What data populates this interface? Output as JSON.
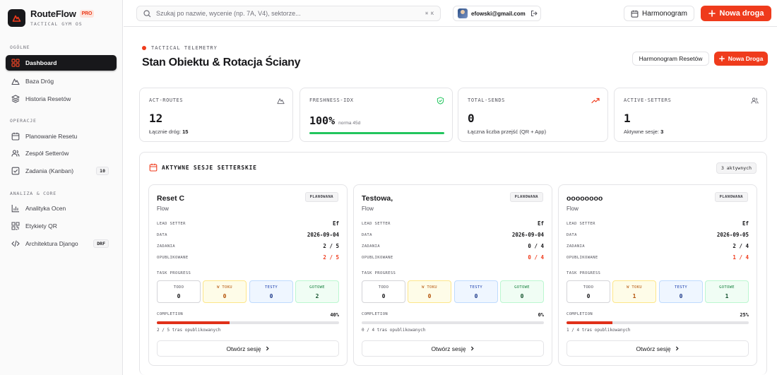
{
  "brand": {
    "name": "RouteFlow",
    "badge": "PRO",
    "subtitle": "TACTICAL GYM OS"
  },
  "sidebar": {
    "sections": [
      {
        "title": "OGÓLNE",
        "items": [
          {
            "label": "Dashboard",
            "icon": "dashboard-grid-icon",
            "active": true
          },
          {
            "label": "Baza Dróg",
            "icon": "mountain-icon"
          },
          {
            "label": "Historia Resetów",
            "icon": "layers-icon"
          }
        ]
      },
      {
        "title": "OPERACJE",
        "items": [
          {
            "label": "Planowanie Resetu",
            "icon": "calendar-icon"
          },
          {
            "label": "Zespół Setterów",
            "icon": "users-icon"
          },
          {
            "label": "Zadania (Kanban)",
            "icon": "checkbox-icon",
            "badge": "10"
          }
        ]
      },
      {
        "title": "ANALIZA & CORE",
        "items": [
          {
            "label": "Analityka Ocen",
            "icon": "bar-chart-icon"
          },
          {
            "label": "Etykiety QR",
            "icon": "qr-icon"
          },
          {
            "label": "Architektura Django",
            "icon": "code-icon",
            "badge": "DRF"
          }
        ]
      }
    ]
  },
  "topbar": {
    "search_placeholder": "Szukaj po nazwie, wycenie (np. 7A, V4), sektorze...",
    "shortcut": "⌘ K",
    "user_email": "efowski@gmail.com",
    "schedule_label": "Harmonogram",
    "new_route_label": "Nowa droga"
  },
  "header": {
    "eyebrow": "TACTICAL TELEMETRY",
    "title": "Stan Obiektu & Rotacja Ściany",
    "reset_schedule_label": "Harmonogram Resetów",
    "new_route_label": "Nowa Droga"
  },
  "stats": [
    {
      "label": "ACT-ROUTES",
      "value": "12",
      "sub_prefix": "Łącznie dróg:",
      "sub_value": "15",
      "icon": "mountain-icon"
    },
    {
      "label": "FRESHNESS-IDX",
      "value": "100%",
      "note": "norma 45d",
      "fill": 1.0,
      "icon": "shield-check-icon"
    },
    {
      "label": "TOTAL-SENDS",
      "value": "0",
      "sub_prefix": "Łączna liczba przejść (QR + App)",
      "sub_value": "",
      "icon": "trending-up-icon"
    },
    {
      "label": "ACTIVE-SETTERS",
      "value": "1",
      "sub_prefix": "Aktywne sesje:",
      "sub_value": "3",
      "icon": "users-icon"
    }
  ],
  "sessions": {
    "title": "AKTYWNE SESJE SETTERSKIE",
    "count_badge": "3 aktywnych",
    "labels": {
      "lead": "LEAD SETTER",
      "date": "DATA",
      "tasks": "ZADANIA",
      "published": "OPUBLIKOWANE",
      "task_progress": "TASK PROGRESS",
      "todo": "TODO",
      "in_progress": "W TOKU",
      "testing": "TESTY",
      "done": "GOTOWE",
      "completion": "COMPLETION",
      "open": "Otwórz sesję"
    },
    "cards": [
      {
        "name": "Reset C",
        "type": "Flow",
        "status": "PLANOWANA",
        "lead": "Ef",
        "date": "2026-09-04",
        "tasks": "2 / 5",
        "published": "2 / 5",
        "todo": "0",
        "in_progress": "0",
        "testing": "0",
        "done": "2",
        "completion": "40%",
        "completion_fraction": 0.4,
        "note": "2 / 5 tras opublikowanych"
      },
      {
        "name": "Testowa,",
        "type": "Flow",
        "status": "PLANOWANA",
        "lead": "Ef",
        "date": "2026-09-04",
        "tasks": "0 / 4",
        "published": "0 / 4",
        "todo": "0",
        "in_progress": "0",
        "testing": "0",
        "done": "0",
        "completion": "0%",
        "completion_fraction": 0.0,
        "note": "0 / 4 tras opublikowanych"
      },
      {
        "name": "oooooooo",
        "type": "Flow",
        "status": "PLANOWANA",
        "lead": "Ef",
        "date": "2026-09-05",
        "tasks": "2 / 4",
        "published": "1 / 4",
        "todo": "0",
        "in_progress": "1",
        "testing": "0",
        "done": "1",
        "completion": "25%",
        "completion_fraction": 0.25,
        "note": "1 / 4 tras opublikowanych"
      }
    ]
  },
  "colors": {
    "accent": "#ef3b1c",
    "dark": "#18181b",
    "success": "#22c55e"
  }
}
